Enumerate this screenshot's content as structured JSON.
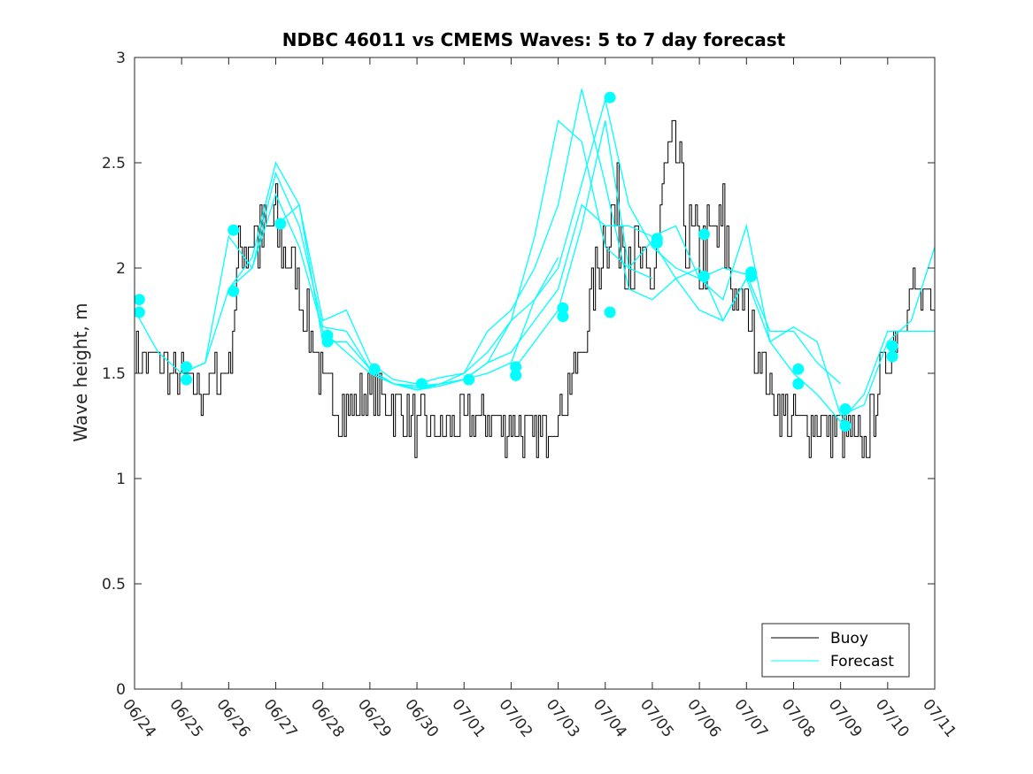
{
  "chart_data": {
    "type": "line",
    "title": "NDBC 46011 vs CMEMS Waves: 5 to 7 day forecast",
    "xlabel": "",
    "ylabel": "Wave height, m",
    "xlim": [
      "06/24",
      "07/11"
    ],
    "ylim": [
      0,
      3
    ],
    "x_ticks": [
      "06/24",
      "06/25",
      "06/26",
      "06/27",
      "06/28",
      "06/29",
      "06/30",
      "07/01",
      "07/02",
      "07/03",
      "07/04",
      "07/05",
      "07/06",
      "07/07",
      "07/08",
      "07/09",
      "07/10",
      "07/11"
    ],
    "y_ticks": [
      "0",
      "0.5",
      "1",
      "1.5",
      "2",
      "2.5",
      "3"
    ],
    "grid": false,
    "legend": {
      "position": "bottom-right",
      "entries": [
        "Buoy",
        "Forecast"
      ]
    },
    "colors": {
      "buoy": "#000000",
      "forecast": "#00FFFF"
    },
    "series": [
      {
        "name": "Buoy",
        "x_day": [
          0,
          0.5,
          1,
          1.5,
          2,
          2.25,
          2.5,
          2.75,
          3,
          3.5,
          4,
          4.5,
          5,
          5.5,
          6,
          6.5,
          7,
          7.5,
          8,
          8.5,
          9,
          9.5,
          9.85,
          10,
          10.25,
          10.5,
          10.75,
          11,
          11.25,
          11.5,
          11.75,
          12,
          12.5,
          12.75,
          13,
          13.5,
          14,
          14.5,
          15,
          15.5,
          16,
          16.5,
          17
        ],
        "values": [
          1.6,
          1.55,
          1.45,
          1.4,
          1.55,
          2.1,
          2.15,
          2.1,
          2.2,
          1.9,
          1.45,
          1.3,
          1.4,
          1.35,
          1.25,
          1.22,
          1.25,
          1.3,
          1.25,
          1.2,
          1.3,
          1.6,
          2.05,
          2.2,
          2.25,
          2.1,
          2.0,
          1.9,
          2.4,
          2.55,
          2.1,
          2.05,
          2.2,
          1.85,
          1.8,
          1.4,
          1.25,
          1.25,
          1.22,
          1.15,
          1.6,
          1.9,
          1.75
        ]
      },
      {
        "name": "Forecast",
        "runs": [
          {
            "x_day": [
              0,
              0.5,
              1,
              1.5,
              2,
              2.5,
              3,
              3.5,
              4,
              4.5,
              5,
              5.5,
              6,
              6.5,
              7,
              7.5,
              8,
              8.5,
              9
            ],
            "values": [
              1.8,
              1.6,
              1.5,
              1.55,
              1.9,
              2.0,
              2.45,
              2.2,
              1.72,
              1.7,
              1.52,
              1.45,
              1.44,
              1.45,
              1.47,
              1.5,
              1.55,
              1.85,
              2.05
            ]
          },
          {
            "x_day": [
              1,
              1.5,
              2,
              2.5,
              3,
              3.5,
              4,
              4.5,
              5,
              5.5,
              6,
              6.5,
              7,
              7.5,
              8,
              8.5,
              9,
              9.5,
              10,
              10.5,
              11
            ],
            "values": [
              1.5,
              1.55,
              2.15,
              2.0,
              2.35,
              2.1,
              1.7,
              1.6,
              1.5,
              1.45,
              1.43,
              1.45,
              1.5,
              1.6,
              1.75,
              2.15,
              2.7,
              2.6,
              2.1,
              2.0,
              1.95
            ]
          },
          {
            "x_day": [
              2,
              2.5,
              3,
              3.5,
              4,
              4.5,
              5,
              5.5,
              6,
              6.5,
              7,
              7.5,
              8,
              8.5,
              9,
              9.5,
              10,
              10.5,
              11,
              11.5,
              12,
              12.5,
              13
            ],
            "values": [
              1.9,
              2.05,
              2.5,
              2.3,
              1.75,
              1.8,
              1.55,
              1.47,
              1.45,
              1.48,
              1.5,
              1.7,
              1.8,
              2.0,
              2.3,
              2.85,
              2.4,
              1.9,
              1.85,
              1.95,
              2.0,
              1.75,
              1.95
            ]
          },
          {
            "x_day": [
              3,
              3.5,
              4,
              4.5,
              5,
              5.5,
              6,
              6.5,
              7,
              7.5,
              8,
              8.5,
              9,
              9.5,
              10,
              10.5,
              11,
              11.5,
              12,
              12.5,
              13,
              13.5,
              14,
              14.5,
              15
            ],
            "values": [
              2.2,
              2.3,
              1.65,
              1.65,
              1.52,
              1.45,
              1.42,
              1.45,
              1.47,
              1.55,
              1.6,
              1.75,
              1.9,
              2.3,
              2.2,
              2.2,
              2.15,
              2.2,
              1.95,
              2.0,
              1.97,
              1.7,
              1.7,
              1.55,
              1.45
            ]
          },
          {
            "x_day": [
              5,
              5.5,
              6,
              6.5,
              7,
              7.5,
              8,
              8.5,
              9,
              9.5,
              10,
              10.5,
              11,
              11.5,
              12,
              12.5,
              13,
              13.5,
              14,
              14.5,
              15,
              15.5,
              16,
              16.5,
              17
            ],
            "values": [
              1.5,
              1.45,
              1.42,
              1.44,
              1.47,
              1.55,
              1.75,
              1.85,
              2.0,
              2.4,
              2.8,
              2.3,
              2.1,
              2.0,
              1.95,
              1.85,
              2.2,
              1.65,
              1.72,
              1.65,
              1.3,
              1.35,
              1.65,
              1.75,
              2.1
            ]
          },
          {
            "x_day": [
              8,
              8.5,
              9,
              9.5,
              10,
              10.5,
              11,
              11.5,
              12,
              12.5,
              13,
              13.5,
              14,
              14.5,
              15,
              15.5,
              16,
              16.5,
              17
            ],
            "values": [
              1.5,
              1.65,
              1.8,
              2.2,
              2.7,
              2.0,
              2.13,
              1.95,
              1.8,
              1.75,
              1.95,
              1.65,
              1.5,
              1.4,
              1.27,
              1.4,
              1.7,
              1.7,
              1.7
            ]
          }
        ]
      }
    ],
    "forecast_markers": {
      "x_day": [
        0.1,
        0.1,
        1.1,
        1.1,
        2.1,
        2.1,
        3.1,
        4.1,
        4.1,
        5.1,
        6.1,
        7.1,
        8.1,
        8.1,
        9.1,
        9.1,
        10.1,
        10.1,
        11.1,
        11.1,
        12.1,
        12.1,
        13.1,
        13.1,
        14.1,
        14.1,
        15.1,
        15.1,
        16.1,
        16.1
      ],
      "values": [
        1.85,
        1.79,
        1.53,
        1.47,
        2.18,
        1.89,
        2.21,
        1.68,
        1.65,
        1.52,
        1.45,
        1.47,
        1.53,
        1.49,
        1.81,
        1.77,
        2.81,
        1.79,
        2.14,
        2.12,
        2.16,
        1.96,
        1.98,
        1.96,
        1.52,
        1.45,
        1.33,
        1.25,
        1.63,
        1.58
      ]
    }
  }
}
